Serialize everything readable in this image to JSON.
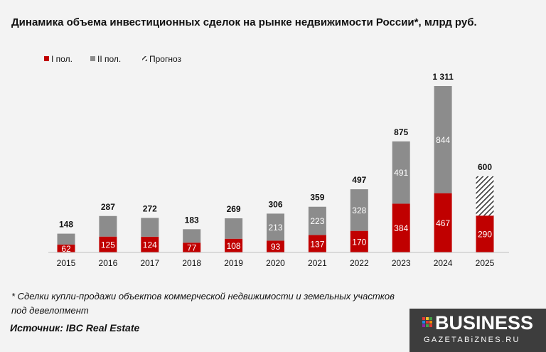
{
  "title": "Динамика объема инвестиционных сделок на рынке недвижимости России*, млрд руб.",
  "footnote": "* Сделки купли-продажи объектов коммерческой недвижимости и земельных участков под девелопмент",
  "source": "Источник: IBC Real Estate",
  "logo": {
    "name": "BUSINESS",
    "sub": "GAZETABiZNES.RU"
  },
  "colors": {
    "h1": "#c00000",
    "h2": "#8c8c8c",
    "forecast": "#3a3a3a"
  },
  "chart_data": {
    "type": "bar",
    "stacked": true,
    "categories": [
      "2015",
      "2016",
      "2017",
      "2018",
      "2019",
      "2020",
      "2021",
      "2022",
      "2023",
      "2024",
      "2025"
    ],
    "series": [
      {
        "name": "I пол.",
        "values": [
          62,
          125,
          124,
          77,
          108,
          93,
          137,
          170,
          384,
          467,
          290
        ]
      },
      {
        "name": "II пол.",
        "values": [
          86,
          162,
          148,
          106,
          161,
          213,
          223,
          328,
          491,
          844,
          null
        ]
      },
      {
        "name": "Прогноз",
        "values": [
          null,
          null,
          null,
          null,
          null,
          null,
          null,
          null,
          null,
          null,
          310
        ]
      }
    ],
    "totals": [
      "148",
      "287",
      "272",
      "183",
      "269",
      "306",
      "359",
      "497",
      "875",
      "1 311",
      "600"
    ],
    "segment_labels_h1": [
      "62",
      "125",
      "124",
      "77",
      "108",
      "93",
      "137",
      "170",
      "384",
      "467",
      "290"
    ],
    "segment_labels_h2": [
      "",
      "",
      "",
      "",
      "",
      "213",
      "223",
      "328",
      "491",
      "844",
      ""
    ],
    "legend": [
      "I пол.",
      "II пол.",
      "Прогноз"
    ],
    "legend_position": "top-left",
    "ylim": [
      0,
      1311
    ],
    "grid": false
  }
}
